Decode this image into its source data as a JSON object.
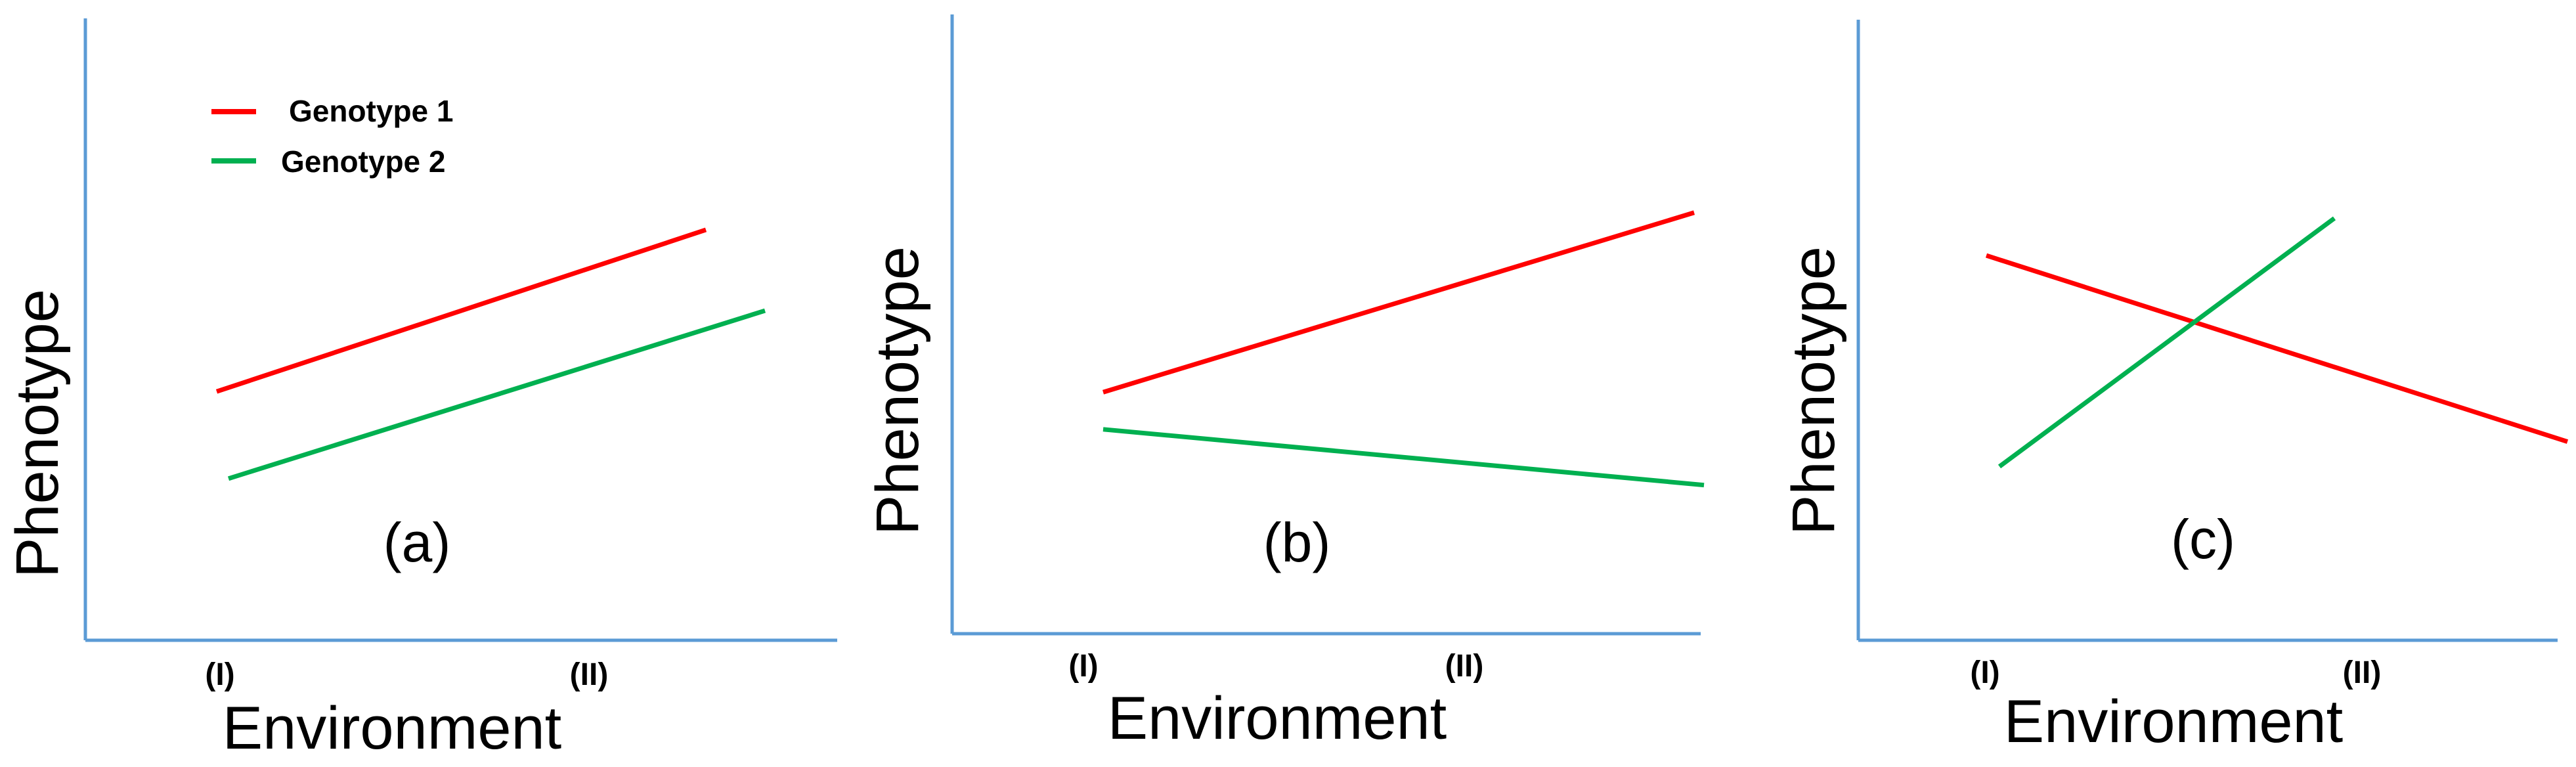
{
  "series_colors": {
    "Genotype 1": "#ff0000",
    "Genotype 2": "#00b050"
  },
  "axis_color": "#5b9bd5",
  "chart_data": [
    {
      "type": "line",
      "panel_label": "(a)",
      "xlabel": "Environment",
      "ylabel": "Phenotype",
      "categories": [
        "(I)",
        "(II)"
      ],
      "ylim": [
        0,
        10
      ],
      "legend": {
        "placement": "top-left",
        "entries": [
          "Genotype 1",
          "Genotype 2"
        ]
      },
      "series": [
        {
          "name": "Genotype 1",
          "values": [
            4.0,
            6.6
          ]
        },
        {
          "name": "Genotype 2",
          "values": [
            2.6,
            5.3
          ]
        }
      ]
    },
    {
      "type": "line",
      "panel_label": "(b)",
      "xlabel": "Environment",
      "ylabel": "Phenotype",
      "categories": [
        "(I)",
        "(II)"
      ],
      "ylim": [
        0,
        10
      ],
      "series": [
        {
          "name": "Genotype 1",
          "values": [
            3.9,
            6.8
          ]
        },
        {
          "name": "Genotype 2",
          "values": [
            3.3,
            2.4
          ]
        }
      ]
    },
    {
      "type": "line",
      "panel_label": "(c)",
      "xlabel": "Environment",
      "ylabel": "Phenotype",
      "categories": [
        "(I)",
        "(II)"
      ],
      "ylim": [
        0,
        10
      ],
      "series": [
        {
          "name": "Genotype 1",
          "values": [
            6.2,
            3.2
          ]
        },
        {
          "name": "Genotype 2",
          "values": [
            2.8,
            6.8
          ]
        }
      ]
    }
  ]
}
